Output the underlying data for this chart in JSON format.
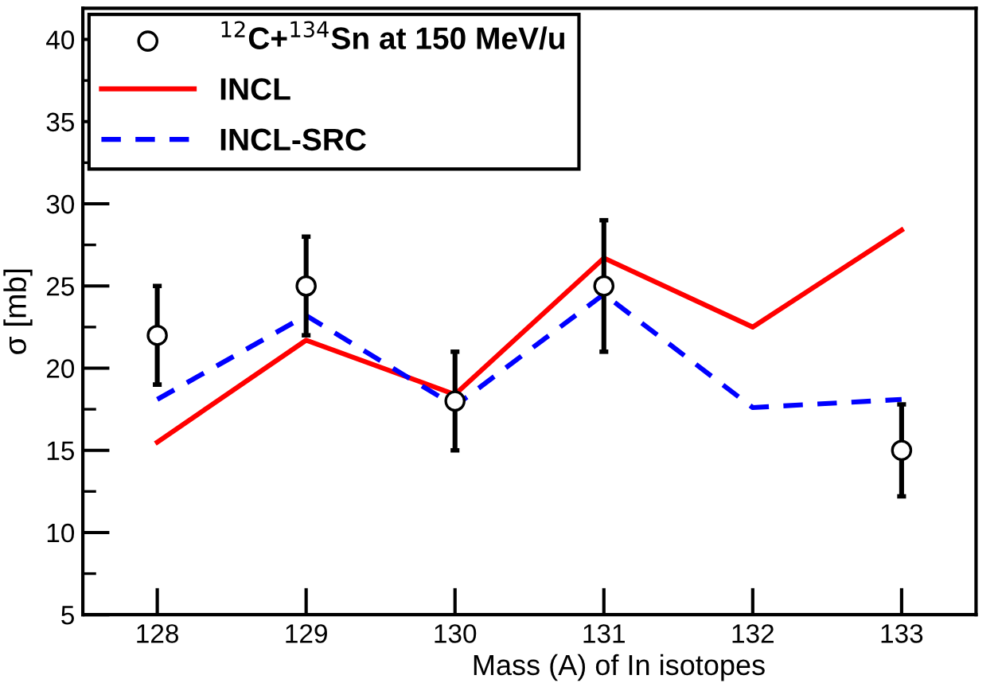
{
  "chart_data": {
    "type": "line",
    "xlabel": "Mass (A) of In isotopes",
    "ylabel": "σ [mb]",
    "x": [
      128,
      129,
      130,
      131,
      132,
      133
    ],
    "series": [
      {
        "name": "$^{12}$C+$^{134}$Sn at 150 MeV/u",
        "type": "scatter",
        "color": "#000000",
        "marker": "circle",
        "values": [
          22,
          25,
          18,
          25,
          null,
          15
        ],
        "errors": [
          3,
          3,
          3,
          4,
          null,
          2.8
        ]
      },
      {
        "name": "INCL",
        "color": "#ff0000",
        "line_style": "solid",
        "values": [
          15.5,
          21.7,
          18.4,
          26.7,
          22.5,
          28.4
        ]
      },
      {
        "name": "INCL-SRC",
        "color": "#0000ff",
        "line_style": "dashed",
        "values": [
          18.1,
          23.2,
          17.7,
          24.5,
          17.6,
          18.1
        ]
      }
    ],
    "xlim": [
      127.5,
      133.5
    ],
    "ylim": [
      5,
      41.9
    ],
    "xticks": [
      128,
      129,
      130,
      131,
      132,
      133
    ],
    "yticks": [
      5,
      10,
      15,
      20,
      25,
      30,
      35,
      40
    ],
    "grid": false,
    "legend": "top left"
  }
}
